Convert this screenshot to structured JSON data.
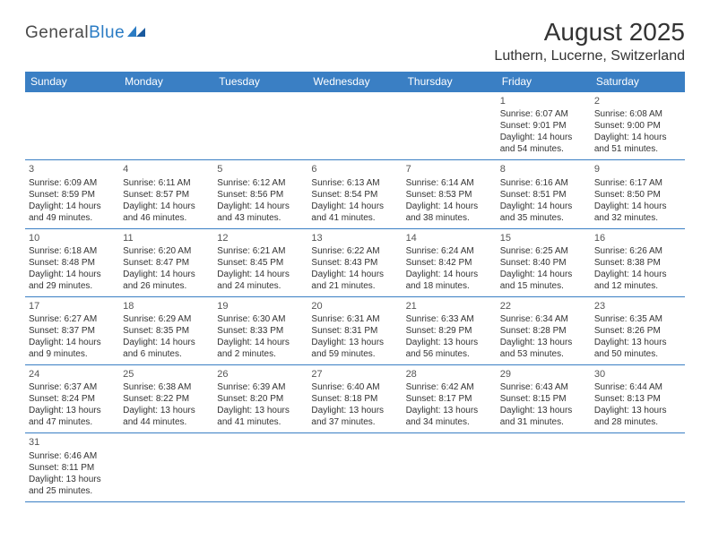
{
  "logo": {
    "part1": "General",
    "part2": "Blue"
  },
  "title": "August 2025",
  "location": "Luthern, Lucerne, Switzerland",
  "header_bg": "#3a7fc4",
  "days_of_week": [
    "Sunday",
    "Monday",
    "Tuesday",
    "Wednesday",
    "Thursday",
    "Friday",
    "Saturday"
  ],
  "weeks": [
    [
      null,
      null,
      null,
      null,
      null,
      {
        "d": "1",
        "sr": "Sunrise: 6:07 AM",
        "ss": "Sunset: 9:01 PM",
        "dl1": "Daylight: 14 hours",
        "dl2": "and 54 minutes."
      },
      {
        "d": "2",
        "sr": "Sunrise: 6:08 AM",
        "ss": "Sunset: 9:00 PM",
        "dl1": "Daylight: 14 hours",
        "dl2": "and 51 minutes."
      }
    ],
    [
      {
        "d": "3",
        "sr": "Sunrise: 6:09 AM",
        "ss": "Sunset: 8:59 PM",
        "dl1": "Daylight: 14 hours",
        "dl2": "and 49 minutes."
      },
      {
        "d": "4",
        "sr": "Sunrise: 6:11 AM",
        "ss": "Sunset: 8:57 PM",
        "dl1": "Daylight: 14 hours",
        "dl2": "and 46 minutes."
      },
      {
        "d": "5",
        "sr": "Sunrise: 6:12 AM",
        "ss": "Sunset: 8:56 PM",
        "dl1": "Daylight: 14 hours",
        "dl2": "and 43 minutes."
      },
      {
        "d": "6",
        "sr": "Sunrise: 6:13 AM",
        "ss": "Sunset: 8:54 PM",
        "dl1": "Daylight: 14 hours",
        "dl2": "and 41 minutes."
      },
      {
        "d": "7",
        "sr": "Sunrise: 6:14 AM",
        "ss": "Sunset: 8:53 PM",
        "dl1": "Daylight: 14 hours",
        "dl2": "and 38 minutes."
      },
      {
        "d": "8",
        "sr": "Sunrise: 6:16 AM",
        "ss": "Sunset: 8:51 PM",
        "dl1": "Daylight: 14 hours",
        "dl2": "and 35 minutes."
      },
      {
        "d": "9",
        "sr": "Sunrise: 6:17 AM",
        "ss": "Sunset: 8:50 PM",
        "dl1": "Daylight: 14 hours",
        "dl2": "and 32 minutes."
      }
    ],
    [
      {
        "d": "10",
        "sr": "Sunrise: 6:18 AM",
        "ss": "Sunset: 8:48 PM",
        "dl1": "Daylight: 14 hours",
        "dl2": "and 29 minutes."
      },
      {
        "d": "11",
        "sr": "Sunrise: 6:20 AM",
        "ss": "Sunset: 8:47 PM",
        "dl1": "Daylight: 14 hours",
        "dl2": "and 26 minutes."
      },
      {
        "d": "12",
        "sr": "Sunrise: 6:21 AM",
        "ss": "Sunset: 8:45 PM",
        "dl1": "Daylight: 14 hours",
        "dl2": "and 24 minutes."
      },
      {
        "d": "13",
        "sr": "Sunrise: 6:22 AM",
        "ss": "Sunset: 8:43 PM",
        "dl1": "Daylight: 14 hours",
        "dl2": "and 21 minutes."
      },
      {
        "d": "14",
        "sr": "Sunrise: 6:24 AM",
        "ss": "Sunset: 8:42 PM",
        "dl1": "Daylight: 14 hours",
        "dl2": "and 18 minutes."
      },
      {
        "d": "15",
        "sr": "Sunrise: 6:25 AM",
        "ss": "Sunset: 8:40 PM",
        "dl1": "Daylight: 14 hours",
        "dl2": "and 15 minutes."
      },
      {
        "d": "16",
        "sr": "Sunrise: 6:26 AM",
        "ss": "Sunset: 8:38 PM",
        "dl1": "Daylight: 14 hours",
        "dl2": "and 12 minutes."
      }
    ],
    [
      {
        "d": "17",
        "sr": "Sunrise: 6:27 AM",
        "ss": "Sunset: 8:37 PM",
        "dl1": "Daylight: 14 hours",
        "dl2": "and 9 minutes."
      },
      {
        "d": "18",
        "sr": "Sunrise: 6:29 AM",
        "ss": "Sunset: 8:35 PM",
        "dl1": "Daylight: 14 hours",
        "dl2": "and 6 minutes."
      },
      {
        "d": "19",
        "sr": "Sunrise: 6:30 AM",
        "ss": "Sunset: 8:33 PM",
        "dl1": "Daylight: 14 hours",
        "dl2": "and 2 minutes."
      },
      {
        "d": "20",
        "sr": "Sunrise: 6:31 AM",
        "ss": "Sunset: 8:31 PM",
        "dl1": "Daylight: 13 hours",
        "dl2": "and 59 minutes."
      },
      {
        "d": "21",
        "sr": "Sunrise: 6:33 AM",
        "ss": "Sunset: 8:29 PM",
        "dl1": "Daylight: 13 hours",
        "dl2": "and 56 minutes."
      },
      {
        "d": "22",
        "sr": "Sunrise: 6:34 AM",
        "ss": "Sunset: 8:28 PM",
        "dl1": "Daylight: 13 hours",
        "dl2": "and 53 minutes."
      },
      {
        "d": "23",
        "sr": "Sunrise: 6:35 AM",
        "ss": "Sunset: 8:26 PM",
        "dl1": "Daylight: 13 hours",
        "dl2": "and 50 minutes."
      }
    ],
    [
      {
        "d": "24",
        "sr": "Sunrise: 6:37 AM",
        "ss": "Sunset: 8:24 PM",
        "dl1": "Daylight: 13 hours",
        "dl2": "and 47 minutes."
      },
      {
        "d": "25",
        "sr": "Sunrise: 6:38 AM",
        "ss": "Sunset: 8:22 PM",
        "dl1": "Daylight: 13 hours",
        "dl2": "and 44 minutes."
      },
      {
        "d": "26",
        "sr": "Sunrise: 6:39 AM",
        "ss": "Sunset: 8:20 PM",
        "dl1": "Daylight: 13 hours",
        "dl2": "and 41 minutes."
      },
      {
        "d": "27",
        "sr": "Sunrise: 6:40 AM",
        "ss": "Sunset: 8:18 PM",
        "dl1": "Daylight: 13 hours",
        "dl2": "and 37 minutes."
      },
      {
        "d": "28",
        "sr": "Sunrise: 6:42 AM",
        "ss": "Sunset: 8:17 PM",
        "dl1": "Daylight: 13 hours",
        "dl2": "and 34 minutes."
      },
      {
        "d": "29",
        "sr": "Sunrise: 6:43 AM",
        "ss": "Sunset: 8:15 PM",
        "dl1": "Daylight: 13 hours",
        "dl2": "and 31 minutes."
      },
      {
        "d": "30",
        "sr": "Sunrise: 6:44 AM",
        "ss": "Sunset: 8:13 PM",
        "dl1": "Daylight: 13 hours",
        "dl2": "and 28 minutes."
      }
    ],
    [
      {
        "d": "31",
        "sr": "Sunrise: 6:46 AM",
        "ss": "Sunset: 8:11 PM",
        "dl1": "Daylight: 13 hours",
        "dl2": "and 25 minutes."
      },
      null,
      null,
      null,
      null,
      null,
      null
    ]
  ]
}
